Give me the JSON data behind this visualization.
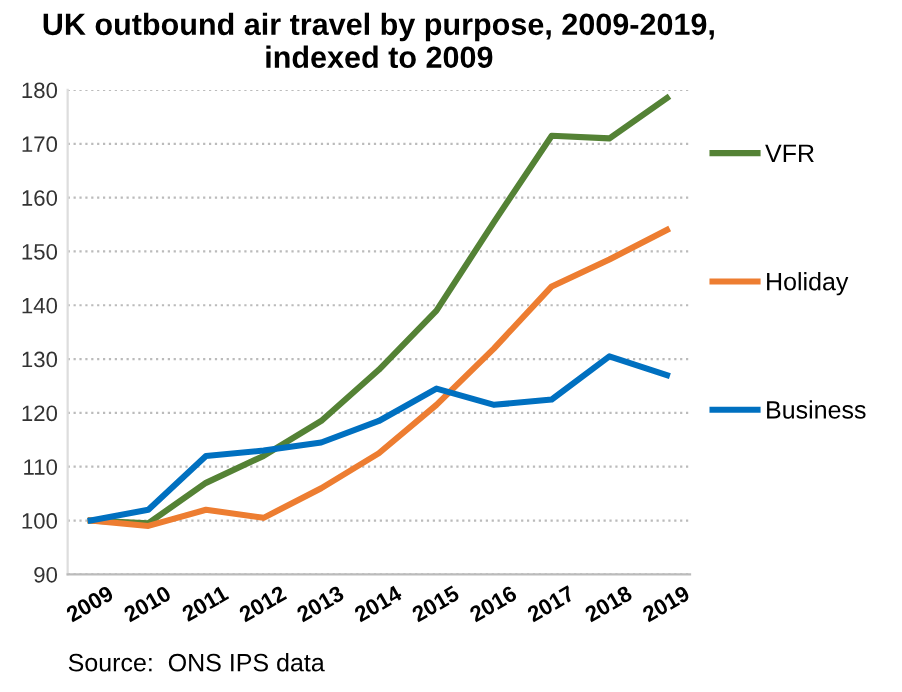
{
  "chart_data": {
    "type": "line",
    "title": "UK outbound air travel by purpose, 2009-2019,\nindexed to 2009",
    "categories": [
      "2009",
      "2010",
      "2011",
      "2012",
      "2013",
      "2014",
      "2015",
      "2016",
      "2017",
      "2018",
      "2019"
    ],
    "series": [
      {
        "name": "VFR",
        "color": "#548235",
        "values": [
          100,
          99.5,
          107,
          112,
          118.5,
          128,
          139,
          155.5,
          171.5,
          171,
          178.5
        ]
      },
      {
        "name": "Holiday",
        "color": "#ed7d31",
        "values": [
          100,
          99,
          102,
          100.5,
          106,
          112.5,
          121.5,
          132,
          143.5,
          148.5,
          154
        ]
      },
      {
        "name": "Business",
        "color": "#0070c0",
        "values": [
          100,
          102,
          112,
          113,
          114.5,
          118.5,
          124.5,
          121.5,
          122.5,
          130.5,
          127
        ]
      }
    ],
    "ylim": [
      90,
      180
    ],
    "yticks": [
      90,
      100,
      110,
      120,
      130,
      140,
      150,
      160,
      170,
      180
    ],
    "grid": "y",
    "legend": "right",
    "marker": "none",
    "line_style": "solid",
    "annotations": [
      "Source:  ONS IPS data"
    ]
  }
}
